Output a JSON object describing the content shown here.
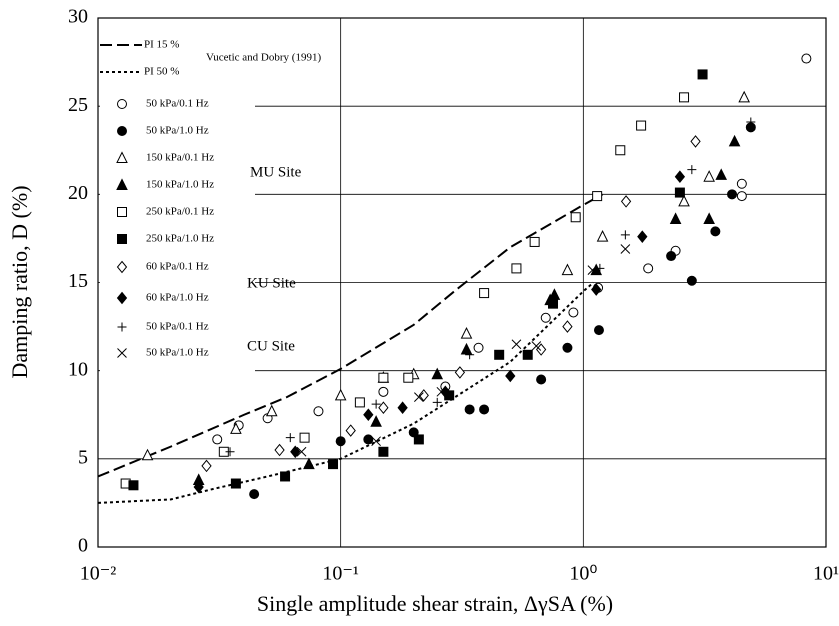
{
  "chart_data": {
    "type": "scatter",
    "xlabel": "Single amplitude shear strain, ΔγSA (%)",
    "ylabel": "Damping ratio, D (%)",
    "xscale": "log",
    "xlim": [
      0.01,
      10
    ],
    "ylim": [
      0,
      30
    ],
    "xticks": [
      {
        "value": 0.01,
        "label": "10⁻²"
      },
      {
        "value": 0.1,
        "label": "10⁻¹"
      },
      {
        "value": 1,
        "label": "10⁰"
      },
      {
        "value": 10,
        "label": "10¹"
      }
    ],
    "yticks": [
      0,
      5,
      10,
      15,
      20,
      25,
      30
    ],
    "grid": true,
    "legend": "upper left",
    "annotations": [
      "Vucetic and Dobry (1991)",
      "MU Site",
      "KU Site",
      "CU Site"
    ],
    "series": [
      {
        "name": "PI 15 %",
        "marker": "line",
        "style": "dashed",
        "color": "#000000",
        "x": [
          0.01,
          0.02,
          0.04,
          0.06,
          0.1,
          0.2,
          0.3,
          0.5,
          1,
          1.2
        ],
        "values": [
          4,
          5.7,
          7.5,
          8.5,
          10.1,
          12.6,
          14.6,
          17,
          19.4,
          20
        ]
      },
      {
        "name": "PI 50 %",
        "marker": "line",
        "style": "dotted",
        "color": "#000000",
        "x": [
          0.01,
          0.02,
          0.03,
          0.05,
          0.1,
          0.2,
          0.5,
          1,
          1.1
        ],
        "values": [
          2.5,
          2.7,
          3.3,
          4,
          5,
          7,
          10.5,
          14.5,
          15
        ]
      },
      {
        "name": "50 kPa/0.1 Hz",
        "marker": "circle",
        "filled": false,
        "color": "#000000",
        "x": [
          0.031,
          0.038,
          0.05,
          0.081,
          0.15,
          0.27,
          0.37,
          0.7,
          0.91,
          1.15,
          1.85,
          2.4,
          4.5,
          4.5,
          8.3
        ],
        "values": [
          6.1,
          6.9,
          7.3,
          7.7,
          8.8,
          9.1,
          11.3,
          13,
          13.3,
          14.7,
          15.8,
          16.8,
          19.9,
          20.6,
          27.7
        ]
      },
      {
        "name": "50 kPa/1.0 Hz",
        "marker": "circle",
        "filled": true,
        "color": "#000000",
        "x": [
          0.044,
          0.1,
          0.13,
          0.2,
          0.34,
          0.39,
          0.67,
          0.86,
          1.16,
          2.3,
          2.8,
          3.5,
          4.1,
          4.9
        ],
        "values": [
          3,
          6,
          6.1,
          6.5,
          7.8,
          7.8,
          9.5,
          11.3,
          12.3,
          16.5,
          15.1,
          17.9,
          20,
          23.8
        ]
      },
      {
        "name": "150 kPa/0.1 Hz",
        "marker": "triangle",
        "filled": false,
        "color": "#000000",
        "x": [
          0.016,
          0.037,
          0.052,
          0.1,
          0.15,
          0.2,
          0.33,
          0.86,
          1.2,
          2.6,
          3.3,
          4.6
        ],
        "values": [
          5.2,
          6.7,
          7.7,
          8.6,
          9.6,
          9.8,
          12.1,
          15.7,
          17.6,
          19.6,
          21,
          25.5
        ]
      },
      {
        "name": "150 kPa/1.0 Hz",
        "marker": "triangle",
        "filled": true,
        "color": "#000000",
        "x": [
          0.026,
          0.074,
          0.14,
          0.25,
          0.33,
          0.73,
          0.76,
          1.13,
          2.4,
          3.7,
          3.3,
          4.2
        ],
        "values": [
          3.8,
          4.7,
          7.1,
          9.8,
          11.2,
          14,
          14.3,
          15.7,
          18.6,
          21.1,
          18.6,
          23
        ]
      },
      {
        "name": "250 kPa/0.1 Hz",
        "marker": "square",
        "filled": false,
        "color": "#000000",
        "x": [
          0.013,
          0.033,
          0.071,
          0.12,
          0.15,
          0.19,
          0.39,
          0.53,
          0.63,
          0.93,
          1.14,
          1.42,
          1.73,
          2.6
        ],
        "values": [
          3.6,
          5.4,
          6.2,
          8.2,
          9.6,
          9.6,
          14.4,
          15.8,
          17.3,
          18.7,
          19.9,
          22.5,
          23.9,
          25.5
        ]
      },
      {
        "name": "250 kPa/1.0 Hz",
        "marker": "square",
        "filled": true,
        "color": "#000000",
        "x": [
          0.014,
          0.037,
          0.059,
          0.093,
          0.15,
          0.21,
          0.28,
          0.45,
          0.59,
          0.75,
          2.5,
          3.1
        ],
        "values": [
          3.5,
          3.6,
          4,
          4.7,
          5.4,
          6.1,
          8.6,
          10.9,
          10.9,
          13.8,
          20.1,
          26.8
        ]
      },
      {
        "name": "60 kPa/0.1 Hz",
        "marker": "diamond",
        "filled": false,
        "color": "#000000",
        "x": [
          0.028,
          0.056,
          0.11,
          0.15,
          0.22,
          0.31,
          0.67,
          0.86,
          1.5,
          2.9
        ],
        "values": [
          4.6,
          5.5,
          6.6,
          7.9,
          8.6,
          9.9,
          11.2,
          12.5,
          19.6,
          23
        ]
      },
      {
        "name": "60 kPa/1.0 Hz",
        "marker": "diamond",
        "filled": true,
        "color": "#000000",
        "x": [
          0.026,
          0.065,
          0.13,
          0.18,
          0.27,
          0.5,
          1.13,
          1.75,
          2.5
        ],
        "values": [
          3.4,
          5.4,
          7.5,
          7.9,
          8.8,
          9.7,
          14.6,
          17.6,
          21
        ]
      },
      {
        "name": "50 kPa/0.1 Hz",
        "marker": "plus",
        "filled": false,
        "color": "#000000",
        "x": [
          0.035,
          0.062,
          0.14,
          0.25,
          0.34,
          1.17,
          1.49,
          2.8,
          4.9
        ],
        "values": [
          5.4,
          6.2,
          8.1,
          8.2,
          10.9,
          15.8,
          17.7,
          21.4,
          24.1
        ]
      },
      {
        "name": "50 kPa/1.0 Hz",
        "marker": "cross",
        "filled": false,
        "color": "#000000",
        "x": [
          0.069,
          0.14,
          0.21,
          0.26,
          0.53,
          0.64,
          1.09,
          1.49
        ],
        "values": [
          5.4,
          6,
          8.5,
          8.8,
          11.5,
          11.4,
          15.7,
          16.9
        ]
      }
    ]
  }
}
